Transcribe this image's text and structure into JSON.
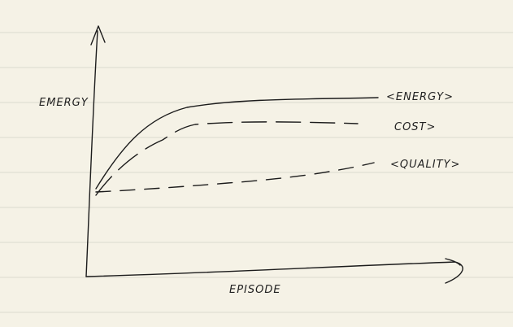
{
  "axes": {
    "y_label": "EMERGY",
    "x_label": "EPISODE"
  },
  "curves": [
    {
      "label": "<ENERGY>"
    },
    {
      "label": "COST>"
    },
    {
      "label": "<QUALITY>"
    }
  ]
}
